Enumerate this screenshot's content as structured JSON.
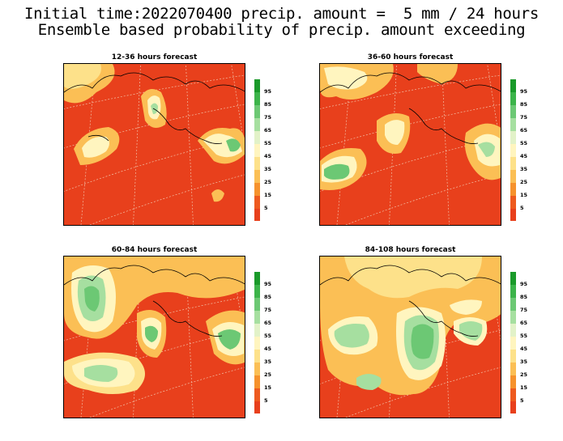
{
  "header": {
    "line1": "Initial time:2022070400 precip. amount =  5 mm / 24 hours",
    "line2": "Ensemble based probability of precip. amount exceeding"
  },
  "panels": [
    {
      "title": "12-36 hours forecast"
    },
    {
      "title": "36-60 hours forecast"
    },
    {
      "title": "60-84 hours forecast"
    },
    {
      "title": "84-108 hours forecast"
    }
  ],
  "colorbar": {
    "labels": [
      "95",
      "85",
      "75",
      "65",
      "55",
      "45",
      "35",
      "25",
      "15",
      "5"
    ],
    "colors": [
      "#1a9a2a",
      "#3cb44a",
      "#6cc874",
      "#a6dfa0",
      "#e2f2c8",
      "#fff5bf",
      "#fde18a",
      "#fbbf55",
      "#f6922d",
      "#ee5a1f",
      "#e8401c"
    ]
  },
  "map_colors": {
    "background": "#e8401c",
    "graticule": "#f2c1a8",
    "coast": "#000000"
  }
}
